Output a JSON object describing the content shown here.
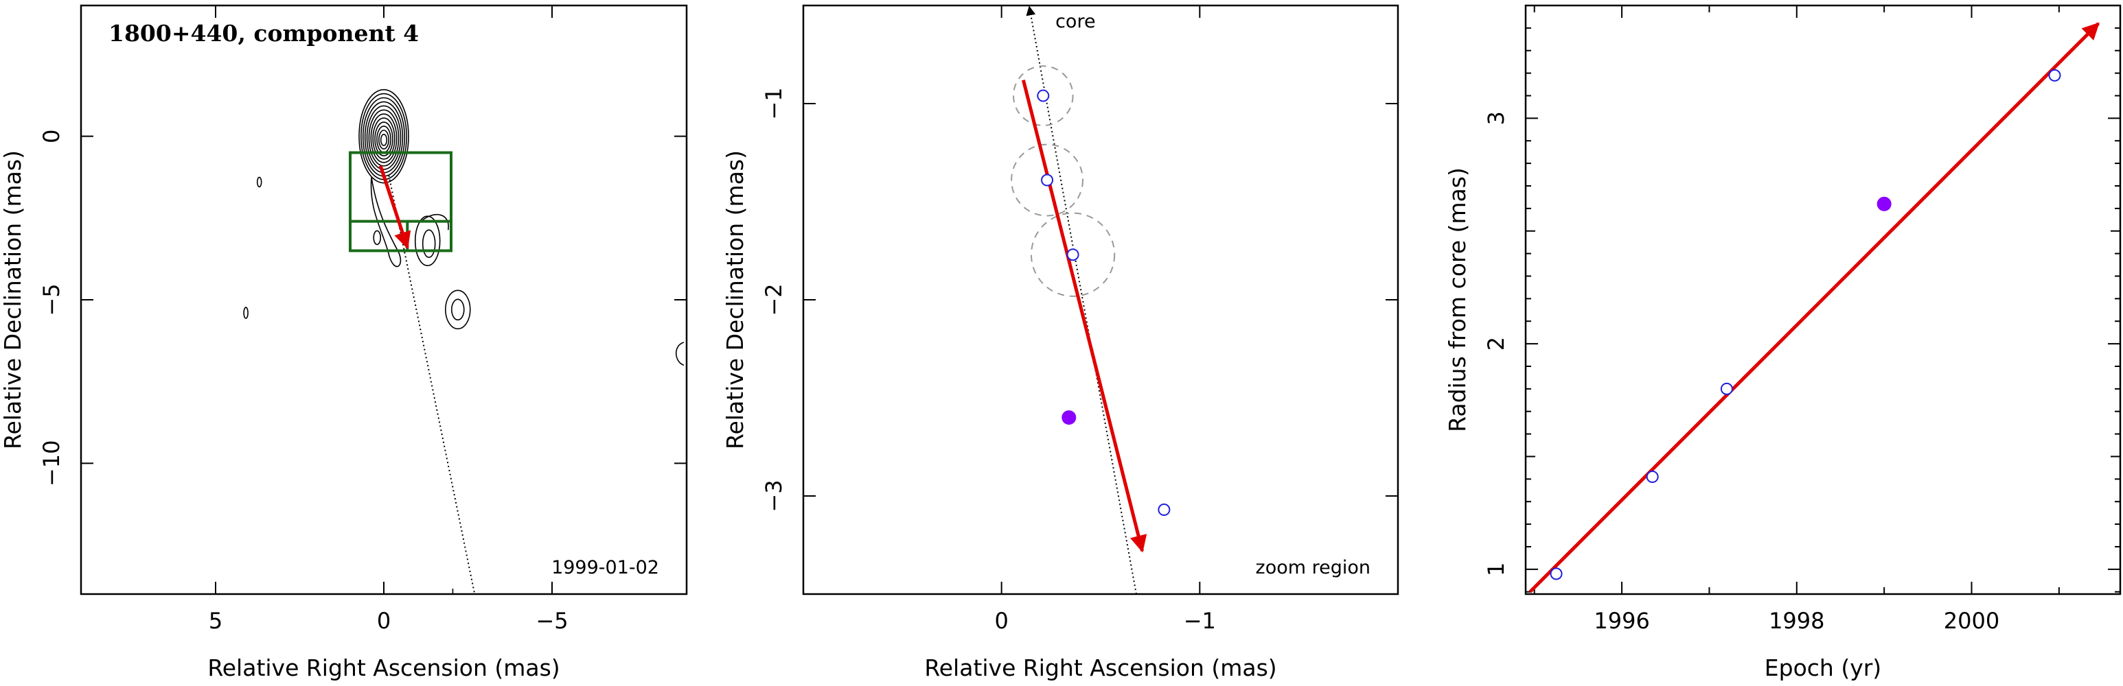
{
  "chart_data": [
    {
      "type": "scatter",
      "title": "1800+440, component 4",
      "annotation": "1999-01-02",
      "xlabel": "Relative Right Ascension (mas)",
      "ylabel": "Relative Declination (mas)",
      "xlim": [
        9,
        -9
      ],
      "ylim": [
        -14,
        4
      ],
      "xticks": [
        {
          "v": 5,
          "label": "5"
        },
        {
          "v": 0,
          "label": "0"
        },
        {
          "v": -5,
          "label": "−5"
        }
      ],
      "yticks": [
        {
          "v": 0,
          "label": "0"
        },
        {
          "v": -5,
          "label": "−5"
        },
        {
          "v": -10,
          "label": "−10"
        }
      ],
      "contour_peaks": [
        {
          "x": 0.0,
          "y": 0.0
        },
        {
          "x": -1.3,
          "y": -3.2
        },
        {
          "x": -2.2,
          "y": -5.3
        }
      ],
      "zoom_box": {
        "x": [
          1.0,
          -2.0
        ],
        "y": [
          -0.5,
          -3.5
        ]
      },
      "motion_vector": {
        "from": [
          0.1,
          -0.9
        ],
        "to": [
          -0.7,
          -3.4
        ]
      },
      "ridge_line": {
        "from": [
          -0.15,
          -1.2
        ],
        "to": [
          -2.7,
          -14
        ]
      }
    },
    {
      "type": "scatter",
      "annotation": "zoom region",
      "core_label": "core",
      "xlabel": "Relative Right Ascension (mas)",
      "ylabel": "Relative Declination (mas)",
      "xlim": [
        1,
        -2
      ],
      "ylim": [
        -3.5,
        -0.5
      ],
      "xticks": [
        {
          "v": 0,
          "label": "0"
        },
        {
          "v": -1,
          "label": "−1"
        }
      ],
      "yticks": [
        {
          "v": -1,
          "label": "−1"
        },
        {
          "v": -2,
          "label": "−2"
        },
        {
          "v": -3,
          "label": "−3"
        }
      ],
      "points_open": [
        {
          "x": -0.21,
          "y": -0.96,
          "r": 0.15
        },
        {
          "x": -0.23,
          "y": -1.39,
          "r": 0.18
        },
        {
          "x": -0.36,
          "y": -1.77,
          "r": 0.21
        },
        {
          "x": -0.82,
          "y": -3.07
        }
      ],
      "points_filled": [
        {
          "x": -0.34,
          "y": -2.6
        }
      ],
      "motion_vector": {
        "from": [
          -0.11,
          -0.88
        ],
        "to": [
          -0.71,
          -3.28
        ]
      },
      "ridge_line": {
        "from": [
          -0.14,
          -0.52
        ],
        "to": [
          -0.68,
          -3.5
        ]
      }
    },
    {
      "type": "scatter",
      "xlabel": "Epoch (yr)",
      "ylabel": "Radius from core (mas)",
      "xlim": [
        1994.9,
        2001.7
      ],
      "ylim": [
        0.89,
        3.5
      ],
      "xticks": [
        {
          "v": 1996,
          "label": "1996"
        },
        {
          "v": 1998,
          "label": "1998"
        },
        {
          "v": 2000,
          "label": "2000"
        }
      ],
      "yticks": [
        {
          "v": 1,
          "label": "1"
        },
        {
          "v": 2,
          "label": "2"
        },
        {
          "v": 3,
          "label": "3"
        }
      ],
      "points_open": [
        {
          "x": 1995.25,
          "y": 0.98
        },
        {
          "x": 1996.35,
          "y": 1.41
        },
        {
          "x": 1997.2,
          "y": 1.8
        },
        {
          "x": 2000.95,
          "y": 3.19
        }
      ],
      "points_filled": [
        {
          "x": 1999.0,
          "y": 2.62
        }
      ],
      "fit_line": {
        "from": [
          1994.95,
          0.9
        ],
        "to": [
          2001.45,
          3.42
        ]
      }
    }
  ]
}
